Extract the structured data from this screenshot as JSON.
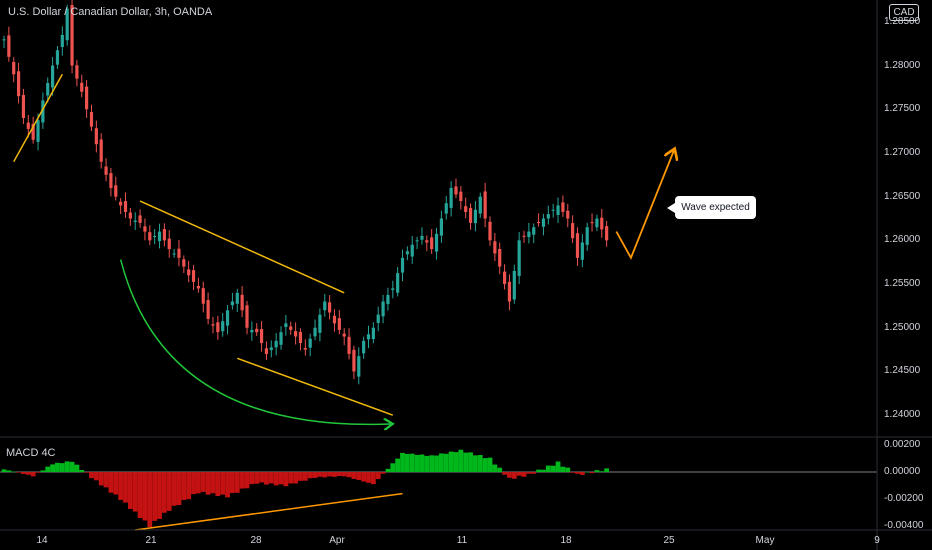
{
  "header": {
    "title": "U.S. Dollar / Canadian Dollar, 3h, OANDA",
    "currency_badge": "CAD"
  },
  "annotation": {
    "callout_text": "Wave expected"
  },
  "indicator": {
    "label": "MACD 4C"
  },
  "colors": {
    "up": "#26a69a",
    "down": "#ef5350",
    "bull": "#00b81b",
    "bear": "#c41212",
    "trend": "#f0b90b",
    "arc": "#21c73a",
    "projection": "#ff9800"
  },
  "chart_data": [
    {
      "type": "candlestick",
      "title": "U.S. Dollar / Canadian Dollar, 3h, OANDA",
      "x_tick_labels": [
        "14",
        "21",
        "28",
        "Apr",
        "11",
        "18",
        "25",
        "May",
        "9"
      ],
      "y_tick_labels": [
        "1.28500",
        "1.28000",
        "1.27500",
        "1.27000",
        "1.26500",
        "1.26000",
        "1.25500",
        "1.25000",
        "1.24500",
        "1.24000"
      ],
      "ylim": [
        1.2375,
        1.2875
      ],
      "close_path": [
        [
          0,
          1.283
        ],
        [
          2,
          1.279
        ],
        [
          4,
          1.274
        ],
        [
          6,
          1.2715
        ],
        [
          8,
          1.276
        ],
        [
          10,
          1.28
        ],
        [
          12,
          1.2835
        ],
        [
          13,
          1.2865
        ],
        [
          14,
          1.28
        ],
        [
          16,
          1.277
        ],
        [
          18,
          1.273
        ],
        [
          20,
          1.269
        ],
        [
          22,
          1.266
        ],
        [
          24,
          1.264
        ],
        [
          26,
          1.2625
        ],
        [
          28,
          1.262
        ],
        [
          30,
          1.26
        ],
        [
          32,
          1.261
        ],
        [
          34,
          1.259
        ],
        [
          36,
          1.258
        ],
        [
          38,
          1.256
        ],
        [
          40,
          1.2545
        ],
        [
          42,
          1.251
        ],
        [
          44,
          1.2495
        ],
        [
          46,
          1.252
        ],
        [
          48,
          1.254
        ],
        [
          50,
          1.25
        ],
        [
          52,
          1.2495
        ],
        [
          54,
          1.247
        ],
        [
          56,
          1.2485
        ],
        [
          58,
          1.2505
        ],
        [
          60,
          1.249
        ],
        [
          62,
          1.2475
        ],
        [
          64,
          1.25
        ],
        [
          66,
          1.253
        ],
        [
          68,
          1.2505
        ],
        [
          70,
          1.249
        ],
        [
          72,
          1.245
        ],
        [
          74,
          1.2485
        ],
        [
          76,
          1.25
        ],
        [
          78,
          1.253
        ],
        [
          80,
          1.2545
        ],
        [
          82,
          1.258
        ],
        [
          84,
          1.2595
        ],
        [
          86,
          1.2605
        ],
        [
          88,
          1.259
        ],
        [
          90,
          1.2625
        ],
        [
          92,
          1.266
        ],
        [
          94,
          1.2645
        ],
        [
          96,
          1.262
        ],
        [
          98,
          1.265
        ],
        [
          100,
          1.26
        ],
        [
          102,
          1.257
        ],
        [
          104,
          1.253
        ],
        [
          106,
          1.26
        ],
        [
          108,
          1.261
        ],
        [
          110,
          1.262
        ],
        [
          112,
          1.263
        ],
        [
          114,
          1.264
        ],
        [
          116,
          1.2625
        ],
        [
          118,
          1.258
        ],
        [
          120,
          1.2615
        ],
        [
          122,
          1.2625
        ],
        [
          124,
          1.26
        ]
      ],
      "indicator": {
        "name": "MACD 4C",
        "y_tick_labels": [
          "0.00200",
          "0.00000",
          "-0.00200",
          "-0.00400"
        ],
        "ylim": [
          -0.0043,
          0.0026
        ],
        "histogram_path": [
          [
            0,
            0.0002
          ],
          [
            6,
            -0.0003
          ],
          [
            10,
            0.0006
          ],
          [
            14,
            0.0008
          ],
          [
            18,
            -0.0004
          ],
          [
            24,
            -0.002
          ],
          [
            30,
            -0.004
          ],
          [
            34,
            -0.0028
          ],
          [
            40,
            -0.0015
          ],
          [
            46,
            -0.0018
          ],
          [
            52,
            -0.0008
          ],
          [
            58,
            -0.001
          ],
          [
            64,
            -0.0004
          ],
          [
            70,
            -0.0003
          ],
          [
            76,
            -0.0009
          ],
          [
            82,
            0.0014
          ],
          [
            88,
            0.0012
          ],
          [
            94,
            0.0016
          ],
          [
            100,
            0.001
          ],
          [
            104,
            -0.0005
          ],
          [
            108,
            -0.0002
          ],
          [
            114,
            0.0007
          ],
          [
            118,
            -0.0002
          ],
          [
            124,
            0.0002
          ]
        ]
      },
      "drawings": [
        {
          "kind": "trendline",
          "from": [
            2,
            1.269
          ],
          "to": [
            12,
            1.279
          ]
        },
        {
          "kind": "trendline",
          "from": [
            28,
            1.2645
          ],
          "to": [
            70,
            1.254
          ]
        },
        {
          "kind": "trendline",
          "from": [
            48,
            1.2465
          ],
          "to": [
            80,
            1.24
          ]
        },
        {
          "kind": "arc",
          "from": [
            24,
            1.2578
          ],
          "to": [
            80,
            1.239
          ]
        },
        {
          "kind": "projection",
          "points": [
            [
              126,
              1.261
            ],
            [
              129,
              1.258
            ],
            [
              138,
              1.2705
            ]
          ]
        },
        {
          "kind": "indicator-trendline",
          "from": [
            27,
            -0.0043
          ],
          "to": [
            82,
            -0.0016
          ]
        }
      ]
    }
  ]
}
